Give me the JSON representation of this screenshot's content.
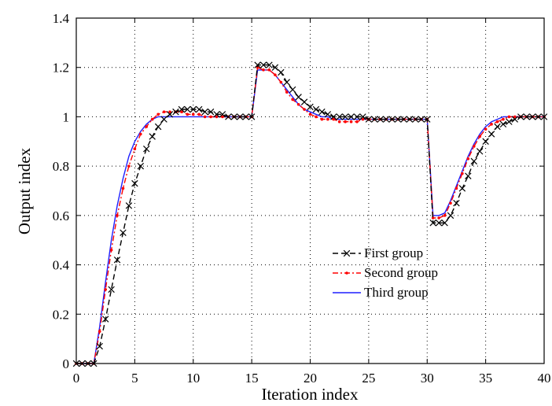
{
  "chart_data": {
    "type": "line",
    "title": "",
    "xlabel": "Iteration index",
    "ylabel": "Output index",
    "xlim": [
      0,
      40
    ],
    "ylim": [
      0,
      1.4
    ],
    "xticks": [
      "0",
      "5",
      "10",
      "15",
      "20",
      "25",
      "30",
      "35",
      "40"
    ],
    "yticks": [
      "0",
      "0.2",
      "0.4",
      "0.6",
      "0.8",
      "1",
      "1.2",
      "1.4"
    ],
    "grid": true,
    "legend_position": "lower-right",
    "series": [
      {
        "name": "First group",
        "color": "#000000",
        "line_style": "dashed",
        "marker": "x",
        "x": [
          0,
          0.5,
          1,
          1.5,
          2,
          2.5,
          3,
          3.5,
          4,
          4.5,
          5,
          5.5,
          6,
          6.5,
          7,
          7.5,
          8,
          8.5,
          9,
          9.5,
          10,
          10.5,
          11,
          11.5,
          12,
          12.5,
          13,
          13.5,
          14,
          14.5,
          15,
          15.5,
          16,
          16.5,
          17,
          17.5,
          18,
          18.5,
          19,
          19.5,
          20,
          20.5,
          21,
          21.5,
          22,
          22.5,
          23,
          23.5,
          24,
          24.5,
          25,
          25.5,
          26,
          26.5,
          27,
          27.5,
          28,
          28.5,
          29,
          29.5,
          30,
          30.5,
          31,
          31.5,
          32,
          32.5,
          33,
          33.5,
          34,
          34.5,
          35,
          35.5,
          36,
          36.5,
          37,
          37.5,
          38,
          38.5,
          39,
          39.5,
          40
        ],
        "y": [
          0,
          0,
          0,
          0,
          0.07,
          0.18,
          0.3,
          0.42,
          0.53,
          0.64,
          0.73,
          0.8,
          0.87,
          0.92,
          0.96,
          0.99,
          1.01,
          1.02,
          1.03,
          1.03,
          1.03,
          1.03,
          1.02,
          1.02,
          1.01,
          1.01,
          1.0,
          1.0,
          1.0,
          1.0,
          1.0,
          1.21,
          1.21,
          1.21,
          1.2,
          1.18,
          1.14,
          1.11,
          1.08,
          1.06,
          1.04,
          1.03,
          1.02,
          1.01,
          1.0,
          1.0,
          1.0,
          1.0,
          1.0,
          1.0,
          0.99,
          0.99,
          0.99,
          0.99,
          0.99,
          0.99,
          0.99,
          0.99,
          0.99,
          0.99,
          0.99,
          0.57,
          0.57,
          0.57,
          0.6,
          0.65,
          0.71,
          0.76,
          0.82,
          0.86,
          0.9,
          0.93,
          0.96,
          0.97,
          0.98,
          0.99,
          1.0,
          1.0,
          1.0,
          1.0,
          1.0
        ]
      },
      {
        "name": "Second group",
        "color": "#ff0000",
        "line_style": "dashdot",
        "marker": "dot",
        "x": [
          0,
          0.5,
          1,
          1.5,
          2,
          2.5,
          3,
          3.5,
          4,
          4.5,
          5,
          5.5,
          6,
          6.5,
          7,
          7.5,
          8,
          8.5,
          9,
          9.5,
          10,
          10.5,
          11,
          11.5,
          12,
          12.5,
          13,
          13.5,
          14,
          14.5,
          15,
          15.5,
          16,
          16.5,
          17,
          17.5,
          18,
          18.5,
          19,
          19.5,
          20,
          20.5,
          21,
          21.5,
          22,
          22.5,
          23,
          23.5,
          24,
          24.5,
          25,
          25.5,
          26,
          26.5,
          27,
          27.5,
          28,
          28.5,
          29,
          29.5,
          30,
          30.5,
          31,
          31.5,
          32,
          32.5,
          33,
          33.5,
          34,
          34.5,
          35,
          35.5,
          36,
          36.5,
          37,
          37.5,
          38,
          38.5,
          39,
          39.5,
          40
        ],
        "y": [
          0,
          0,
          0,
          0,
          0.13,
          0.3,
          0.46,
          0.6,
          0.71,
          0.8,
          0.87,
          0.93,
          0.96,
          0.99,
          1.01,
          1.02,
          1.02,
          1.02,
          1.02,
          1.01,
          1.01,
          1.01,
          1.0,
          1.0,
          1.0,
          1.0,
          1.0,
          1.0,
          1.0,
          1.0,
          1.0,
          1.2,
          1.19,
          1.19,
          1.17,
          1.14,
          1.1,
          1.07,
          1.05,
          1.03,
          1.01,
          1.0,
          0.99,
          0.99,
          0.99,
          0.98,
          0.98,
          0.98,
          0.98,
          0.99,
          0.99,
          0.99,
          0.99,
          0.99,
          0.99,
          0.99,
          0.99,
          0.99,
          0.99,
          0.99,
          0.99,
          0.59,
          0.59,
          0.6,
          0.65,
          0.71,
          0.77,
          0.83,
          0.88,
          0.92,
          0.95,
          0.97,
          0.98,
          0.99,
          1.0,
          1.0,
          1.0,
          1.0,
          1.0,
          1.0,
          1.0
        ]
      },
      {
        "name": "Third group",
        "color": "#1f1fff",
        "line_style": "solid",
        "marker": "none",
        "x": [
          0,
          0.5,
          1,
          1.5,
          2,
          2.5,
          3,
          3.5,
          4,
          4.5,
          5,
          5.5,
          6,
          6.5,
          7,
          7.5,
          8,
          8.5,
          9,
          9.5,
          10,
          10.5,
          11,
          11.5,
          12,
          12.5,
          13,
          13.5,
          14,
          14.5,
          15,
          15.5,
          16,
          16.5,
          17,
          17.5,
          18,
          18.5,
          19,
          19.5,
          20,
          20.5,
          21,
          21.5,
          22,
          22.5,
          23,
          23.5,
          24,
          24.5,
          25,
          25.5,
          26,
          26.5,
          27,
          27.5,
          28,
          28.5,
          29,
          29.5,
          30,
          30.5,
          31,
          31.5,
          32,
          32.5,
          33,
          33.5,
          34,
          34.5,
          35,
          35.5,
          36,
          36.5,
          37,
          37.5,
          38,
          38.5,
          39,
          39.5,
          40
        ],
        "y": [
          0,
          0,
          0,
          0,
          0.15,
          0.33,
          0.5,
          0.64,
          0.75,
          0.84,
          0.9,
          0.94,
          0.97,
          0.99,
          1.0,
          1.0,
          1.0,
          1.0,
          1.0,
          1.0,
          1.0,
          1.0,
          1.0,
          1.0,
          1.0,
          1.0,
          1.0,
          1.0,
          1.0,
          1.0,
          1.0,
          1.19,
          1.19,
          1.19,
          1.17,
          1.14,
          1.11,
          1.08,
          1.05,
          1.03,
          1.02,
          1.01,
          1.0,
          1.0,
          0.99,
          0.99,
          0.99,
          0.99,
          0.99,
          0.99,
          0.99,
          0.99,
          0.99,
          0.99,
          0.99,
          0.99,
          0.99,
          0.99,
          0.99,
          0.99,
          0.99,
          0.6,
          0.6,
          0.61,
          0.66,
          0.72,
          0.78,
          0.84,
          0.89,
          0.93,
          0.96,
          0.98,
          0.99,
          1.0,
          1.0,
          1.0,
          1.0,
          1.0,
          1.0,
          1.0,
          1.0
        ]
      }
    ]
  }
}
